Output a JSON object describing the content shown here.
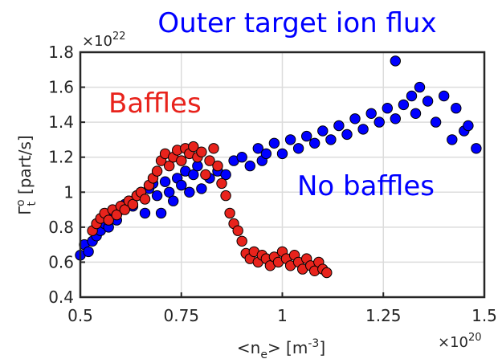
{
  "chart_data": {
    "type": "scatter",
    "title": "Outer target ion flux",
    "xlabel": "<n_e> [m^-3]",
    "ylabel": "Γ_t^o [part/s]",
    "x_multiplier": "×10^20",
    "y_multiplier": "×10^22",
    "xlim": [
      0.5,
      1.5
    ],
    "ylim": [
      0.4,
      1.8
    ],
    "x_ticks": [
      "0.5",
      "0.75",
      "1",
      "1.25",
      "1.5"
    ],
    "y_ticks": [
      "0.4",
      "0.6",
      "0.8",
      "1",
      "1.2",
      "1.4",
      "1.6",
      "1.8"
    ],
    "grid": true,
    "annotations": [
      {
        "text": "Baffles",
        "color": "#e8231c"
      },
      {
        "text": "No baffles",
        "color": "#0000ff"
      }
    ],
    "series": [
      {
        "color": "#0000ff",
        "points": [
          [
            0.5,
            0.64
          ],
          [
            0.51,
            0.7
          ],
          [
            0.52,
            0.66
          ],
          [
            0.53,
            0.72
          ],
          [
            0.54,
            0.75
          ],
          [
            0.55,
            0.78
          ],
          [
            0.56,
            0.82
          ],
          [
            0.57,
            0.8
          ],
          [
            0.58,
            0.86
          ],
          [
            0.59,
            0.84
          ],
          [
            0.6,
            0.9
          ],
          [
            0.61,
            0.93
          ],
          [
            0.62,
            0.95
          ],
          [
            0.63,
            0.92
          ],
          [
            0.64,
            0.98
          ],
          [
            0.65,
            1.0
          ],
          [
            0.66,
            0.88
          ],
          [
            0.67,
            1.02
          ],
          [
            0.68,
            1.05
          ],
          [
            0.69,
            0.98
          ],
          [
            0.7,
            0.88
          ],
          [
            0.71,
            1.06
          ],
          [
            0.72,
            1.0
          ],
          [
            0.73,
            0.95
          ],
          [
            0.74,
            1.08
          ],
          [
            0.75,
            1.04
          ],
          [
            0.76,
            1.12
          ],
          [
            0.77,
            1.0
          ],
          [
            0.78,
            1.1
          ],
          [
            0.79,
            1.15
          ],
          [
            0.8,
            1.02
          ],
          [
            0.82,
            1.08
          ],
          [
            0.84,
            1.12
          ],
          [
            0.86,
            1.1
          ],
          [
            0.88,
            1.18
          ],
          [
            0.9,
            1.2
          ],
          [
            0.92,
            1.15
          ],
          [
            0.94,
            1.25
          ],
          [
            0.95,
            1.18
          ],
          [
            0.96,
            1.22
          ],
          [
            0.98,
            1.28
          ],
          [
            1.0,
            1.22
          ],
          [
            1.02,
            1.3
          ],
          [
            1.04,
            1.25
          ],
          [
            1.06,
            1.32
          ],
          [
            1.08,
            1.28
          ],
          [
            1.1,
            1.35
          ],
          [
            1.12,
            1.3
          ],
          [
            1.14,
            1.38
          ],
          [
            1.16,
            1.33
          ],
          [
            1.18,
            1.42
          ],
          [
            1.2,
            1.36
          ],
          [
            1.22,
            1.45
          ],
          [
            1.24,
            1.4
          ],
          [
            1.26,
            1.48
          ],
          [
            1.28,
            1.42
          ],
          [
            1.28,
            1.75
          ],
          [
            1.3,
            1.5
          ],
          [
            1.32,
            1.55
          ],
          [
            1.33,
            1.45
          ],
          [
            1.34,
            1.6
          ],
          [
            1.36,
            1.52
          ],
          [
            1.38,
            1.4
          ],
          [
            1.4,
            1.55
          ],
          [
            1.42,
            1.3
          ],
          [
            1.43,
            1.48
          ],
          [
            1.45,
            1.35
          ],
          [
            1.46,
            1.38
          ],
          [
            1.48,
            1.25
          ]
        ]
      },
      {
        "color": "#e8231c",
        "points": [
          [
            0.53,
            0.78
          ],
          [
            0.54,
            0.82
          ],
          [
            0.55,
            0.85
          ],
          [
            0.56,
            0.88
          ],
          [
            0.57,
            0.84
          ],
          [
            0.58,
            0.9
          ],
          [
            0.59,
            0.87
          ],
          [
            0.6,
            0.92
          ],
          [
            0.61,
            0.9
          ],
          [
            0.62,
            0.95
          ],
          [
            0.63,
            0.93
          ],
          [
            0.64,
            0.98
          ],
          [
            0.65,
            1.0
          ],
          [
            0.66,
            0.96
          ],
          [
            0.67,
            1.04
          ],
          [
            0.68,
            1.08
          ],
          [
            0.69,
            1.12
          ],
          [
            0.7,
            1.18
          ],
          [
            0.71,
            1.22
          ],
          [
            0.72,
            1.15
          ],
          [
            0.73,
            1.2
          ],
          [
            0.74,
            1.24
          ],
          [
            0.75,
            1.18
          ],
          [
            0.76,
            1.25
          ],
          [
            0.77,
            1.22
          ],
          [
            0.78,
            1.26
          ],
          [
            0.79,
            1.2
          ],
          [
            0.8,
            1.23
          ],
          [
            0.81,
            1.1
          ],
          [
            0.82,
            1.18
          ],
          [
            0.83,
            1.25
          ],
          [
            0.84,
            1.15
          ],
          [
            0.85,
            1.05
          ],
          [
            0.86,
            0.98
          ],
          [
            0.87,
            0.88
          ],
          [
            0.88,
            0.82
          ],
          [
            0.89,
            0.78
          ],
          [
            0.9,
            0.72
          ],
          [
            0.91,
            0.65
          ],
          [
            0.92,
            0.62
          ],
          [
            0.93,
            0.66
          ],
          [
            0.94,
            0.6
          ],
          [
            0.95,
            0.64
          ],
          [
            0.96,
            0.62
          ],
          [
            0.97,
            0.58
          ],
          [
            0.98,
            0.63
          ],
          [
            0.99,
            0.6
          ],
          [
            1.0,
            0.66
          ],
          [
            1.01,
            0.62
          ],
          [
            1.02,
            0.58
          ],
          [
            1.03,
            0.64
          ],
          [
            1.04,
            0.6
          ],
          [
            1.05,
            0.56
          ],
          [
            1.06,
            0.62
          ],
          [
            1.07,
            0.58
          ],
          [
            1.08,
            0.55
          ],
          [
            1.09,
            0.6
          ],
          [
            1.1,
            0.56
          ],
          [
            1.11,
            0.54
          ]
        ]
      }
    ]
  }
}
